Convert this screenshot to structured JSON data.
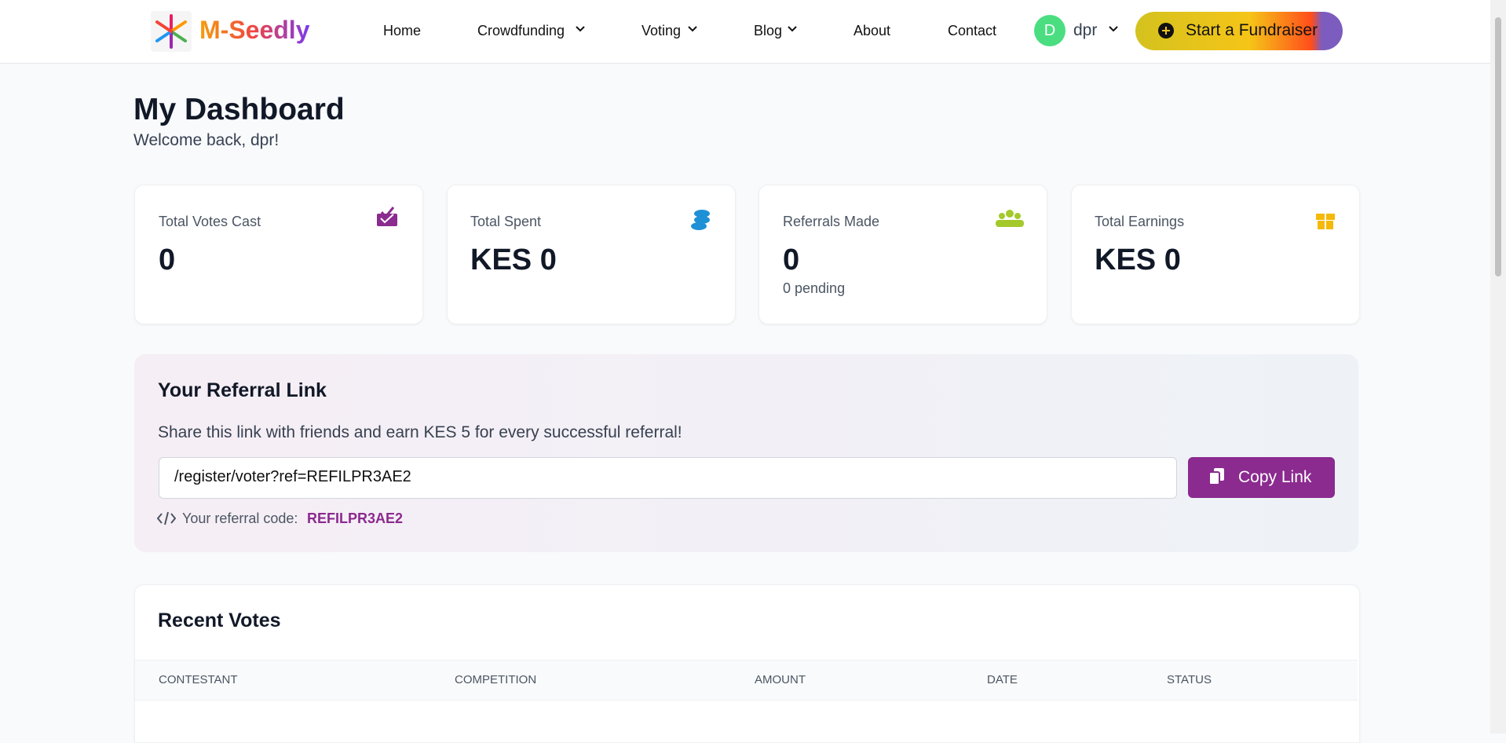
{
  "nav": {
    "brand": "M-Seedly",
    "links": [
      "Home",
      "Crowdfunding",
      "Voting",
      "Blog",
      "About",
      "Contact"
    ],
    "avatar": "D",
    "user": "dpr",
    "cta": "Start a Fundraiser"
  },
  "header": {
    "title": "My Dashboard",
    "subtitle": "Welcome back, dpr!"
  },
  "stats": [
    {
      "label": "Total Votes Cast",
      "value": "0"
    },
    {
      "label": "Total Spent",
      "value": "KES 0"
    },
    {
      "label": "Referrals Made",
      "value": "0",
      "note": "0 pending"
    },
    {
      "label": "Total Earnings",
      "value": "KES 0"
    }
  ],
  "referral": {
    "title": "Your Referral Link",
    "text": "Share this link with friends and earn KES 5 for every successful referral!",
    "link": "/register/voter?ref=REFILPR3AE2",
    "button": "Copy Link",
    "code_label": "Your referral code:",
    "code": "REFILPR3AE2"
  },
  "recent_votes": {
    "title": "Recent Votes",
    "columns": [
      "CONTESTANT",
      "COMPETITION",
      "AMOUNT",
      "DATE",
      "STATUS"
    ]
  }
}
